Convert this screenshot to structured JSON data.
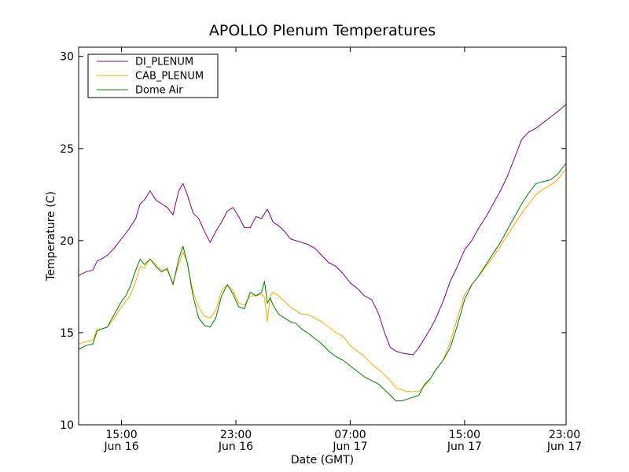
{
  "chart_data": {
    "type": "line",
    "title": "APOLLO Plenum Temperatures",
    "xlabel": "Date (GMT)",
    "ylabel": "Temperature (C)",
    "x_range_hours": [
      0,
      34.1
    ],
    "ylim": [
      10,
      30.5
    ],
    "yticks": [
      10,
      15,
      20,
      25,
      30
    ],
    "xticks": [
      {
        "hour": 3.0,
        "time": "15:00",
        "date": "Jun 16"
      },
      {
        "hour": 11.0,
        "time": "23:00",
        "date": "Jun 16"
      },
      {
        "hour": 19.0,
        "time": "07:00",
        "date": "Jun 17"
      },
      {
        "hour": 27.0,
        "time": "15:00",
        "date": "Jun 17"
      },
      {
        "hour": 35.0,
        "time": "23:00",
        "date": "Jun 17"
      }
    ],
    "legend": {
      "placement": "top-left"
    },
    "series": [
      {
        "name": "DI_PLENUM",
        "color": "#800080",
        "x": [
          0,
          0.5,
          1.0,
          1.3,
          1.6,
          2.0,
          2.5,
          3.0,
          3.5,
          4.0,
          4.3,
          4.6,
          5.0,
          5.4,
          5.8,
          6.2,
          6.6,
          7.0,
          7.3,
          7.6,
          8.0,
          8.4,
          8.8,
          9.2,
          9.6,
          10.0,
          10.4,
          10.8,
          11.2,
          11.6,
          12.0,
          12.4,
          12.8,
          13.2,
          13.6,
          14.0,
          14.4,
          14.8,
          15.2,
          15.6,
          16.0,
          16.5,
          17.0,
          17.5,
          18.0,
          18.5,
          19.0,
          19.5,
          20.0,
          20.5,
          21.0,
          21.4,
          21.8,
          22.2,
          22.6,
          23.0,
          23.4,
          23.8,
          24.2,
          24.6,
          25.0,
          25.5,
          26.0,
          26.5,
          27.0,
          27.5,
          28.0,
          28.5,
          29.0,
          29.5,
          30.0,
          30.5,
          31.0,
          31.5,
          32.0,
          32.5,
          33.0,
          33.5,
          34.1
        ],
        "values": [
          18.1,
          18.3,
          18.4,
          18.9,
          19.0,
          19.2,
          19.6,
          20.1,
          20.6,
          21.2,
          22.0,
          22.2,
          22.7,
          22.2,
          22.0,
          21.8,
          21.4,
          22.7,
          23.1,
          22.5,
          21.5,
          21.2,
          20.5,
          19.9,
          20.5,
          21.0,
          21.6,
          21.8,
          21.3,
          20.7,
          20.7,
          21.3,
          21.2,
          21.7,
          21.0,
          20.8,
          20.5,
          20.1,
          20.0,
          19.9,
          19.8,
          19.6,
          19.2,
          18.8,
          18.6,
          18.2,
          17.7,
          17.4,
          17.0,
          16.8,
          16.0,
          15.0,
          14.2,
          14.0,
          13.9,
          13.85,
          13.8,
          14.2,
          14.7,
          15.2,
          15.8,
          16.7,
          17.8,
          18.6,
          19.5,
          20.0,
          20.7,
          21.3,
          22.0,
          22.7,
          23.5,
          24.5,
          25.5,
          25.9,
          26.1,
          26.4,
          26.7,
          27.0,
          27.4
        ]
      },
      {
        "name": "CAB_PLENUM",
        "color": "#ffa500",
        "x": [
          0,
          0.5,
          1.0,
          1.3,
          1.6,
          2.0,
          2.5,
          3.0,
          3.3,
          3.6,
          4.0,
          4.3,
          4.6,
          5.0,
          5.4,
          5.8,
          6.2,
          6.6,
          7.0,
          7.3,
          7.6,
          8.0,
          8.4,
          8.8,
          9.2,
          9.6,
          10.0,
          10.4,
          10.8,
          11.2,
          11.6,
          12.0,
          12.4,
          12.8,
          13.0,
          13.2,
          13.4,
          13.6,
          14.0,
          14.4,
          14.8,
          15.2,
          15.6,
          16.0,
          16.5,
          17.0,
          17.5,
          18.0,
          18.5,
          19.0,
          19.5,
          20.0,
          20.5,
          21.0,
          21.4,
          21.8,
          22.2,
          22.6,
          23.0,
          23.4,
          23.8,
          24.2,
          24.6,
          25.0,
          25.5,
          26.0,
          26.5,
          27.0,
          27.5,
          28.0,
          28.5,
          29.0,
          29.5,
          30.0,
          30.5,
          31.0,
          31.5,
          32.0,
          32.5,
          33.0,
          33.5,
          34.1
        ],
        "values": [
          14.4,
          14.5,
          14.6,
          15.2,
          15.2,
          15.3,
          15.8,
          16.4,
          16.7,
          17.0,
          17.8,
          18.6,
          18.5,
          19.0,
          18.7,
          18.4,
          18.4,
          17.7,
          18.7,
          19.4,
          18.8,
          17.2,
          16.4,
          15.9,
          15.8,
          16.2,
          17.3,
          17.6,
          17.3,
          16.6,
          16.5,
          17.0,
          17.0,
          17.1,
          16.9,
          15.6,
          17.0,
          17.2,
          17.0,
          16.7,
          16.4,
          16.2,
          16.0,
          16.0,
          15.8,
          15.6,
          15.3,
          15.0,
          14.8,
          14.3,
          14.0,
          13.7,
          13.3,
          13.0,
          12.7,
          12.4,
          12.0,
          11.9,
          11.8,
          11.8,
          11.8,
          12.1,
          12.5,
          13.0,
          13.5,
          14.5,
          15.8,
          17.1,
          17.6,
          18.1,
          18.6,
          19.1,
          19.7,
          20.3,
          20.9,
          21.5,
          22.0,
          22.5,
          22.8,
          23.0,
          23.3,
          23.9
        ]
      },
      {
        "name": "Dome Air",
        "color": "#008000",
        "x": [
          0,
          0.5,
          1.0,
          1.3,
          1.6,
          2.0,
          2.5,
          3.0,
          3.3,
          3.6,
          4.0,
          4.3,
          4.6,
          5.0,
          5.4,
          5.8,
          6.2,
          6.6,
          7.0,
          7.3,
          7.6,
          8.0,
          8.4,
          8.8,
          9.2,
          9.6,
          10.0,
          10.4,
          10.8,
          11.2,
          11.6,
          12.0,
          12.4,
          12.8,
          13.0,
          13.2,
          13.4,
          13.6,
          14.0,
          14.4,
          14.8,
          15.2,
          15.6,
          16.0,
          16.5,
          17.0,
          17.5,
          18.0,
          18.5,
          19.0,
          19.5,
          20.0,
          20.5,
          21.0,
          21.4,
          21.8,
          22.2,
          22.6,
          23.0,
          23.4,
          23.8,
          24.2,
          24.6,
          25.0,
          25.5,
          26.0,
          26.5,
          27.0,
          27.5,
          28.0,
          28.5,
          29.0,
          29.5,
          30.0,
          30.5,
          31.0,
          31.5,
          32.0,
          32.5,
          33.0,
          33.5,
          34.1
        ],
        "values": [
          14.1,
          14.3,
          14.4,
          15.1,
          15.2,
          15.3,
          16.0,
          16.7,
          17.0,
          17.5,
          18.4,
          19.0,
          18.7,
          19.0,
          18.6,
          18.3,
          18.5,
          17.6,
          19.0,
          19.7,
          18.8,
          17.0,
          15.8,
          15.4,
          15.3,
          15.8,
          17.0,
          17.6,
          17.1,
          16.4,
          16.3,
          17.2,
          17.0,
          17.2,
          17.8,
          16.6,
          16.9,
          16.5,
          16.0,
          15.8,
          15.6,
          15.5,
          15.2,
          15.0,
          14.7,
          14.4,
          14.0,
          13.7,
          13.5,
          13.2,
          12.9,
          12.6,
          12.4,
          12.2,
          11.9,
          11.6,
          11.3,
          11.3,
          11.4,
          11.5,
          11.6,
          12.2,
          12.5,
          13.0,
          13.5,
          14.2,
          15.4,
          16.8,
          17.6,
          18.1,
          18.7,
          19.3,
          19.9,
          20.6,
          21.3,
          22.0,
          22.6,
          23.1,
          23.2,
          23.3,
          23.6,
          24.2
        ]
      }
    ]
  }
}
